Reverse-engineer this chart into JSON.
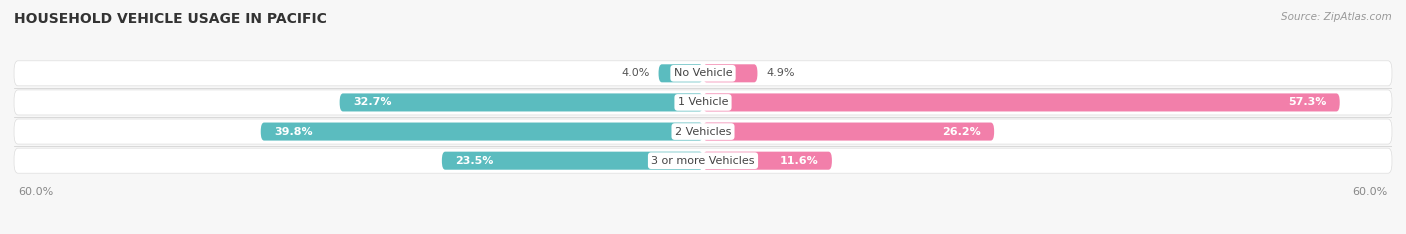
{
  "title": "HOUSEHOLD VEHICLE USAGE IN PACIFIC",
  "source": "Source: ZipAtlas.com",
  "categories": [
    "No Vehicle",
    "1 Vehicle",
    "2 Vehicles",
    "3 or more Vehicles"
  ],
  "owner_values": [
    4.0,
    32.7,
    39.8,
    23.5
  ],
  "renter_values": [
    4.9,
    57.3,
    26.2,
    11.6
  ],
  "owner_color": "#5bbcbf",
  "renter_color": "#f27faa",
  "xlim": 62.0,
  "bar_height": 0.62,
  "background_color": "#f7f7f7",
  "bar_background_color": "#e8e8e8",
  "bar_bg_light": "#f0f0f0",
  "title_fontsize": 10,
  "source_fontsize": 7.5,
  "value_fontsize": 8,
  "category_fontsize": 8,
  "axis_label_fontsize": 8,
  "fig_width": 14.06,
  "fig_height": 2.34
}
